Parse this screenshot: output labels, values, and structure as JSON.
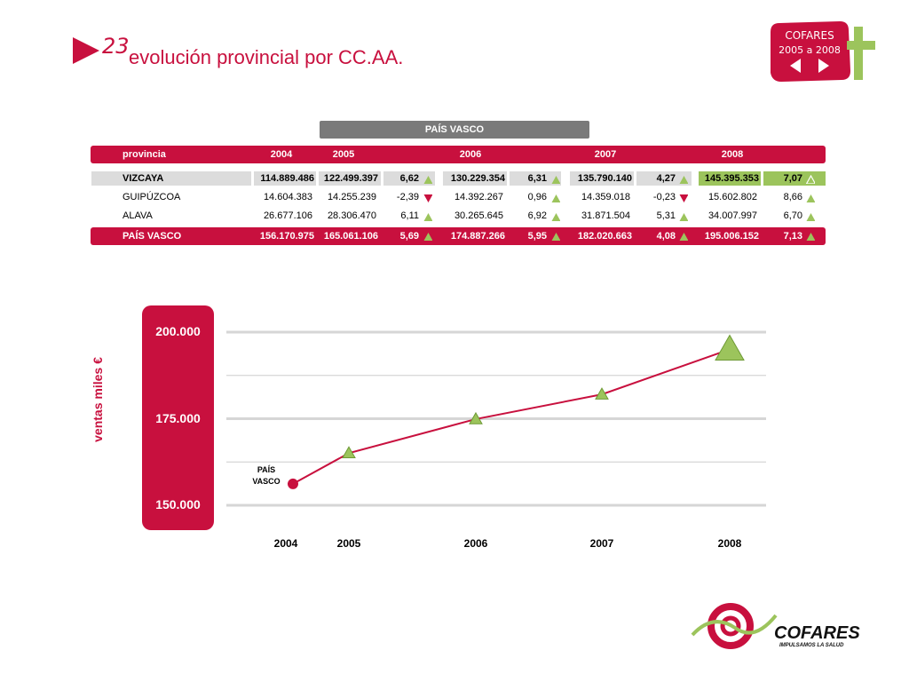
{
  "header": {
    "slide_number": "23",
    "title": "evolución provincial por CC.AA."
  },
  "badge": {
    "line1": "COFARES",
    "line2": "2005 a 2008"
  },
  "region_title": "PAÍS VASCO",
  "table": {
    "headers": [
      "provincia",
      "2004",
      "2005",
      "2006",
      "2007",
      "2008"
    ],
    "rows": [
      {
        "provincia": "VIZCAYA",
        "v2004": "114.889.486",
        "v2005": "122.499.397",
        "p2005": "6,62",
        "t2005": "up",
        "v2006": "130.229.354",
        "p2006": "6,31",
        "t2006": "up",
        "v2007": "135.790.140",
        "p2007": "4,27",
        "t2007": "up",
        "v2008": "145.395.353",
        "p2008": "7,07",
        "t2008": "up"
      },
      {
        "provincia": "GUIPÚZCOA",
        "v2004": "14.604.383",
        "v2005": "14.255.239",
        "p2005": "-2,39",
        "t2005": "down",
        "v2006": "14.392.267",
        "p2006": "0,96",
        "t2006": "up",
        "v2007": "14.359.018",
        "p2007": "-0,23",
        "t2007": "down",
        "v2008": "15.602.802",
        "p2008": "8,66",
        "t2008": "up"
      },
      {
        "provincia": "ALAVA",
        "v2004": "26.677.106",
        "v2005": "28.306.470",
        "p2005": "6,11",
        "t2005": "up",
        "v2006": "30.265.645",
        "p2006": "6,92",
        "t2006": "up",
        "v2007": "31.871.504",
        "p2007": "5,31",
        "t2007": "up",
        "v2008": "34.007.997",
        "p2008": "6,70",
        "t2008": "up"
      }
    ],
    "total": {
      "provincia": "PAÍS VASCO",
      "v2004": "156.170.975",
      "v2005": "165.061.106",
      "p2005": "5,69",
      "v2006": "174.887.266",
      "p2006": "5,95",
      "v2007": "182.020.663",
      "p2007": "4,08",
      "v2008": "195.006.152",
      "p2008": "7,13"
    }
  },
  "chart_data": {
    "type": "line",
    "ylabel": "ventas miles €",
    "ylim": [
      145000,
      205000
    ],
    "yticks": [
      150000,
      175000,
      200000
    ],
    "ytick_labels": [
      "150.000",
      "175.000",
      "200.000"
    ],
    "x": [
      "2004",
      "2005",
      "2006",
      "2007",
      "2008"
    ],
    "series": [
      {
        "name": "PAÍS VASCO",
        "values": [
          156171,
          165061,
          174887,
          182021,
          195006
        ]
      }
    ],
    "grid": true
  },
  "series_label_lines": [
    "PAÍS",
    "VASCO"
  ],
  "logo": {
    "name": "COFARES",
    "tagline": "IMPULSAMOS LA SALUD"
  },
  "colors": {
    "accent": "#c8103e",
    "up": "#9cc45c",
    "down": "#c8103e",
    "header_bar": "#7a7a7a"
  }
}
